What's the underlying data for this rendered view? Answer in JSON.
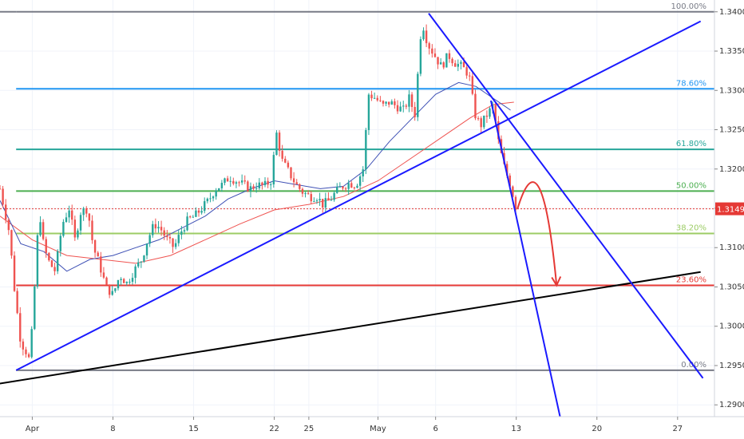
{
  "chart_data": {
    "type": "candlestick",
    "y_axis": {
      "range": [
        1.2885,
        1.3415
      ],
      "ticks": [
        "1.29000",
        "1.29500",
        "1.30000",
        "1.30500",
        "1.31000",
        "1.31500",
        "1.32000",
        "1.32500",
        "1.33000",
        "1.33500",
        "1.34000"
      ],
      "position": "right"
    },
    "x_axis": {
      "ticks": [
        {
          "label": "Apr",
          "day": 1
        },
        {
          "label": "8",
          "day": 8
        },
        {
          "label": "15",
          "day": 15
        },
        {
          "label": "22",
          "day": 22
        },
        {
          "label": "25",
          "day": 25
        },
        {
          "label": "May",
          "day": 31
        },
        {
          "label": "6",
          "day": 36
        },
        {
          "label": "13",
          "day": 43
        },
        {
          "label": "20",
          "day": 50
        },
        {
          "label": "27",
          "day": 57
        }
      ],
      "range_days": [
        -1.8,
        60.2
      ]
    },
    "current_price": {
      "label": "1.31494",
      "value": 1.31494,
      "color": "#e53935"
    },
    "fib_levels": [
      {
        "label": "100.00%",
        "value": 1.34,
        "color": "#787b86"
      },
      {
        "label": "78.60%",
        "value": 1.3302,
        "color": "#2196f3"
      },
      {
        "label": "61.80%",
        "value": 1.3225,
        "color": "#26a69a"
      },
      {
        "label": "50.00%",
        "value": 1.3172,
        "color": "#4caf50"
      },
      {
        "label": "38.20%",
        "value": 1.3118,
        "color": "#9ccc65"
      },
      {
        "label": "23.60%",
        "value": 1.3052,
        "color": "#e53935"
      },
      {
        "label": "0.00%",
        "value": 1.2944,
        "color": "#787b86"
      }
    ],
    "candles_close_path": [
      [
        -1.8,
        1.3175
      ],
      [
        -1.0,
        1.312
      ],
      [
        -0.5,
        1.304
      ],
      [
        0.0,
        1.298
      ],
      [
        0.4,
        1.297
      ],
      [
        0.8,
        1.2955
      ],
      [
        1.2,
        1.305
      ],
      [
        1.6,
        1.315
      ],
      [
        2.0,
        1.31
      ],
      [
        2.5,
        1.308
      ],
      [
        3.0,
        1.307
      ],
      [
        3.6,
        1.313
      ],
      [
        4.2,
        1.315
      ],
      [
        4.7,
        1.311
      ],
      [
        5.2,
        1.3145
      ],
      [
        5.8,
        1.315
      ],
      [
        6.3,
        1.31
      ],
      [
        6.8,
        1.308
      ],
      [
        7.4,
        1.305
      ],
      [
        8.0,
        1.304
      ],
      [
        8.6,
        1.3065
      ],
      [
        9.2,
        1.3055
      ],
      [
        9.8,
        1.307
      ],
      [
        10.5,
        1.3085
      ],
      [
        11.0,
        1.311
      ],
      [
        11.6,
        1.313
      ],
      [
        12.1,
        1.3125
      ],
      [
        12.7,
        1.311
      ],
      [
        13.3,
        1.31
      ],
      [
        13.9,
        1.312
      ],
      [
        14.5,
        1.3135
      ],
      [
        15.1,
        1.314
      ],
      [
        15.7,
        1.315
      ],
      [
        16.3,
        1.316
      ],
      [
        16.9,
        1.3175
      ],
      [
        17.5,
        1.318
      ],
      [
        18.1,
        1.319
      ],
      [
        18.7,
        1.3185
      ],
      [
        19.3,
        1.318
      ],
      [
        19.9,
        1.3175
      ],
      [
        20.5,
        1.318
      ],
      [
        21.1,
        1.3178
      ],
      [
        21.7,
        1.3185
      ],
      [
        22.2,
        1.3245
      ],
      [
        22.7,
        1.321
      ],
      [
        23.3,
        1.3195
      ],
      [
        23.9,
        1.318
      ],
      [
        24.5,
        1.317
      ],
      [
        25.1,
        1.3165
      ],
      [
        25.7,
        1.3165
      ],
      [
        26.2,
        1.3155
      ],
      [
        26.8,
        1.316
      ],
      [
        27.3,
        1.317
      ],
      [
        27.9,
        1.3178
      ],
      [
        28.5,
        1.3182
      ],
      [
        29.1,
        1.318
      ],
      [
        29.7,
        1.32
      ],
      [
        30.2,
        1.3295
      ],
      [
        30.8,
        1.329
      ],
      [
        31.4,
        1.328
      ],
      [
        32.0,
        1.3285
      ],
      [
        32.6,
        1.328
      ],
      [
        33.2,
        1.3275
      ],
      [
        33.7,
        1.329
      ],
      [
        34.2,
        1.327
      ],
      [
        34.8,
        1.339
      ],
      [
        35.3,
        1.336
      ],
      [
        35.9,
        1.3345
      ],
      [
        36.5,
        1.333
      ],
      [
        37.1,
        1.3345
      ],
      [
        37.7,
        1.3335
      ],
      [
        38.3,
        1.333
      ],
      [
        38.9,
        1.332
      ],
      [
        39.4,
        1.327
      ],
      [
        39.9,
        1.3255
      ],
      [
        40.5,
        1.327
      ],
      [
        41.0,
        1.328
      ],
      [
        41.5,
        1.323
      ],
      [
        42.0,
        1.32
      ],
      [
        42.5,
        1.318
      ],
      [
        43.0,
        1.3149
      ]
    ],
    "moving_averages": [
      {
        "color": "#ef5350",
        "values": [
          [
            -1.8,
            1.314
          ],
          [
            1.0,
            1.311
          ],
          [
            4.0,
            1.309
          ],
          [
            7.0,
            1.3085
          ],
          [
            10.0,
            1.308
          ],
          [
            13.0,
            1.309
          ],
          [
            16.0,
            1.311
          ],
          [
            19.0,
            1.313
          ],
          [
            22.0,
            1.3148
          ],
          [
            25.0,
            1.3155
          ],
          [
            28.0,
            1.3165
          ],
          [
            31.0,
            1.3185
          ],
          [
            34.0,
            1.3215
          ],
          [
            37.0,
            1.3245
          ],
          [
            39.0,
            1.3265
          ],
          [
            41.0,
            1.3282
          ],
          [
            42.8,
            1.3285
          ]
        ]
      },
      {
        "color": "#3f51b5",
        "values": [
          [
            -1.8,
            1.316
          ],
          [
            0.0,
            1.3105
          ],
          [
            2.0,
            1.3095
          ],
          [
            4.0,
            1.307
          ],
          [
            6.0,
            1.3085
          ],
          [
            8.0,
            1.309
          ],
          [
            10.0,
            1.31
          ],
          [
            12.0,
            1.311
          ],
          [
            14.0,
            1.3125
          ],
          [
            16.0,
            1.314
          ],
          [
            18.0,
            1.3162
          ],
          [
            20.0,
            1.3175
          ],
          [
            22.0,
            1.3185
          ],
          [
            24.0,
            1.318
          ],
          [
            26.0,
            1.3175
          ],
          [
            28.0,
            1.3178
          ],
          [
            30.0,
            1.32
          ],
          [
            32.0,
            1.3235
          ],
          [
            34.0,
            1.3265
          ],
          [
            36.0,
            1.3295
          ],
          [
            38.0,
            1.331
          ],
          [
            39.5,
            1.3305
          ],
          [
            41.0,
            1.329
          ],
          [
            42.5,
            1.3275
          ]
        ]
      }
    ],
    "trendlines": [
      {
        "color": "#1a1aff",
        "from": [
          -0.4,
          1.2944
        ],
        "to": [
          59.0,
          1.3388
        ]
      },
      {
        "color": "#000000",
        "from": [
          -4.0,
          1.2922
        ],
        "to": [
          59.0,
          1.3069
        ]
      },
      {
        "color": "#1a1aff",
        "from": [
          35.4,
          1.3398
        ],
        "to": [
          59.2,
          1.2934
        ]
      },
      {
        "color": "#1a1aff",
        "from": [
          40.8,
          1.3287
        ],
        "to": [
          46.8,
          1.2885
        ]
      }
    ],
    "projection_arrow": {
      "color": "#e53935",
      "from": [
        43.1,
        1.3149
      ],
      "ctrl": [
        45.2,
        1.321
      ],
      "to": [
        46.5,
        1.3052
      ]
    }
  }
}
